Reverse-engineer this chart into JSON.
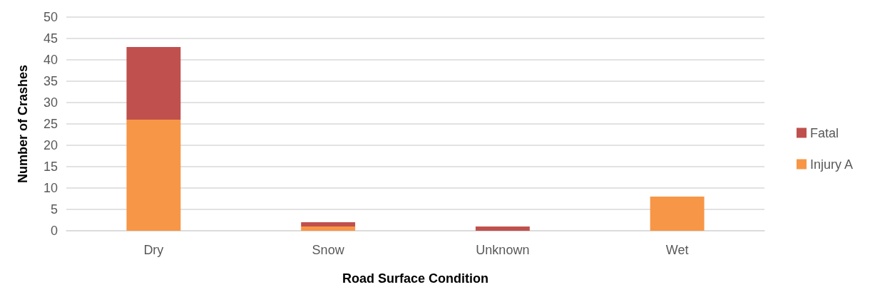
{
  "chart_data": {
    "type": "bar",
    "stacked": true,
    "xlabel": "Road Surface Condition",
    "ylabel": "Number of Crashes",
    "categories": [
      "Dry",
      "Snow",
      "Unknown",
      "Wet"
    ],
    "series": [
      {
        "name": "Injury A",
        "color": "#f79646",
        "values": [
          26,
          1,
          0,
          8
        ]
      },
      {
        "name": "Fatal",
        "color": "#c0504d",
        "values": [
          17,
          1,
          1,
          0
        ]
      }
    ],
    "ylim": [
      0,
      50
    ],
    "yticks": [
      0,
      5,
      10,
      15,
      20,
      25,
      30,
      35,
      40,
      45,
      50
    ],
    "grid": "y",
    "legend": "right"
  }
}
